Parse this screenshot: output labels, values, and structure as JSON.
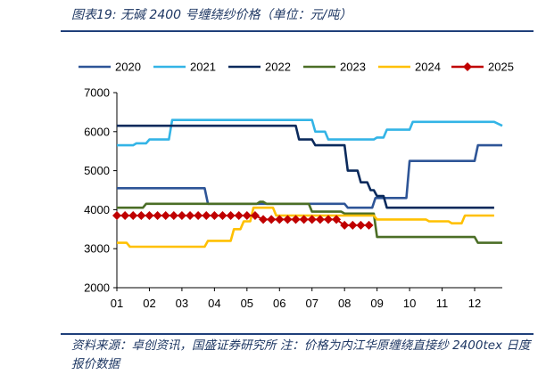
{
  "caption": "图表19: 无碱 2400 号缠绕纱价格（单位：元/吨）",
  "source": "资料来源：卓创资讯，国盛证券研究所  注：价格为内江华原缠绕直接纱 2400tex 日度报价数据",
  "chart_data": {
    "type": "line",
    "title": "",
    "xlabel": "",
    "ylabel": "",
    "ylim": [
      2000,
      7000
    ],
    "yticks": [
      2000,
      3000,
      4000,
      5000,
      6000,
      7000
    ],
    "xlim": [
      1,
      12.85
    ],
    "xticks": [
      "01",
      "02",
      "03",
      "04",
      "05",
      "06",
      "07",
      "08",
      "09",
      "10",
      "11",
      "12"
    ],
    "grid": false,
    "legend": "top",
    "series": [
      {
        "name": "2020",
        "color": "#2e5597",
        "marker": "none",
        "x": [
          1.0,
          3.7,
          3.8,
          8.0,
          8.1,
          8.85,
          8.95,
          9.9,
          10.0,
          12.0,
          12.1,
          12.85
        ],
        "y": [
          4550,
          4550,
          4150,
          4150,
          4050,
          4050,
          4300,
          4300,
          5250,
          5250,
          5650,
          5650
        ]
      },
      {
        "name": "2021",
        "color": "#33b4e6",
        "marker": "none",
        "x": [
          1.0,
          1.5,
          1.6,
          1.9,
          2.0,
          2.6,
          2.7,
          7.0,
          7.1,
          7.4,
          7.5,
          8.9,
          9.0,
          9.2,
          9.3,
          10.0,
          10.1,
          12.6,
          12.85
        ],
        "y": [
          5650,
          5650,
          5700,
          5700,
          5800,
          5800,
          6300,
          6300,
          6000,
          6000,
          5800,
          5800,
          5850,
          5850,
          6050,
          6050,
          6250,
          6250,
          6150
        ]
      },
      {
        "name": "2022",
        "color": "#0b2a5c",
        "marker": "none",
        "x": [
          1.0,
          6.5,
          6.6,
          7.0,
          7.1,
          7.2,
          7.3,
          8.0,
          8.1,
          8.4,
          8.5,
          8.7,
          8.8,
          8.9,
          9.0,
          9.2,
          9.3,
          12.6
        ],
        "y": [
          6150,
          6150,
          5800,
          5800,
          5650,
          5650,
          5650,
          5650,
          5000,
          5000,
          4700,
          4700,
          4500,
          4500,
          4350,
          4350,
          4050,
          4050
        ]
      },
      {
        "name": "2023",
        "color": "#4b6e26",
        "marker": "none",
        "x": [
          1.0,
          1.8,
          1.9,
          5.3,
          5.4,
          5.5,
          5.6,
          6.9,
          7.0,
          7.9,
          8.0,
          8.9,
          9.0,
          10.6,
          10.7,
          12.0,
          12.1,
          12.85
        ],
        "y": [
          4050,
          4050,
          4150,
          4150,
          4200,
          4200,
          4150,
          4150,
          3950,
          3950,
          3900,
          3900,
          3300,
          3300,
          3300,
          3300,
          3150,
          3150
        ]
      },
      {
        "name": "2024",
        "color": "#ffc000",
        "marker": "none",
        "x": [
          1.0,
          1.3,
          1.4,
          3.7,
          3.8,
          4.2,
          4.3,
          4.5,
          4.6,
          4.8,
          4.9,
          5.1,
          5.2,
          5.8,
          5.9,
          8.9,
          9.0,
          10.5,
          10.6,
          11.2,
          11.3,
          11.6,
          11.7,
          12.6
        ],
        "y": [
          3150,
          3150,
          3050,
          3050,
          3200,
          3200,
          3200,
          3200,
          3500,
          3500,
          3700,
          3700,
          4050,
          4050,
          3850,
          3850,
          3750,
          3750,
          3700,
          3700,
          3650,
          3650,
          3850,
          3850
        ]
      },
      {
        "name": "2025",
        "color": "#c00000",
        "marker": "diamond",
        "x": [
          1.0,
          1.25,
          1.5,
          1.75,
          2.0,
          2.25,
          2.5,
          2.75,
          3.0,
          3.25,
          3.5,
          3.75,
          4.0,
          4.25,
          4.5,
          4.75,
          5.0,
          5.25,
          5.5,
          5.75,
          6.0,
          6.25,
          6.5,
          6.75,
          7.0,
          7.25,
          7.5,
          7.75,
          8.0,
          8.25,
          8.5,
          8.75
        ],
        "y": [
          3850,
          3850,
          3850,
          3850,
          3850,
          3850,
          3850,
          3850,
          3850,
          3850,
          3850,
          3850,
          3850,
          3850,
          3850,
          3850,
          3850,
          3850,
          3750,
          3750,
          3750,
          3750,
          3750,
          3750,
          3750,
          3750,
          3750,
          3750,
          3600,
          3600,
          3600,
          3600
        ]
      }
    ]
  }
}
